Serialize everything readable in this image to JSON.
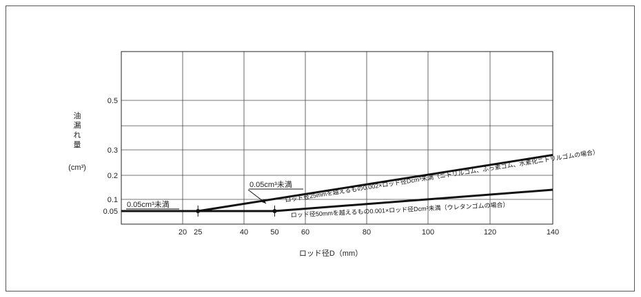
{
  "chart_data": {
    "type": "line",
    "xlabel": "ロッド径D（mm）",
    "ylabel_chars": [
      "油",
      "漏",
      "れ",
      "量"
    ],
    "ylabel_unit": "(cm³)",
    "x_ticks": [
      20,
      25,
      40,
      50,
      60,
      80,
      100,
      120,
      140
    ],
    "y_ticks": [
      0.05,
      0.1,
      0.2,
      0.3,
      0.5
    ],
    "xlim": [
      0,
      140
    ],
    "grid": true,
    "series": [
      {
        "label": "ロッド径25mmを越えるもの0.002×ロッド径Dcm³未満（ニトリルゴム、ふっ素ゴム、水素化ニトリルゴムの場合）",
        "points": [
          [
            25,
            0.05
          ],
          [
            140,
            0.28
          ]
        ]
      },
      {
        "label": "ロッド径50mmを越えるもの0.001×ロッド径Dcm³未満（ウレタンゴムの場合）",
        "points": [
          [
            50,
            0.05
          ],
          [
            140,
            0.14
          ]
        ]
      },
      {
        "points": [
          [
            0,
            0.05
          ],
          [
            50,
            0.05
          ]
        ]
      }
    ],
    "annotations": [
      {
        "text": "0.05cm³未満",
        "anchor": "flat-left"
      },
      {
        "text": "0.05cm³未満",
        "anchor": "upper-line"
      }
    ]
  }
}
